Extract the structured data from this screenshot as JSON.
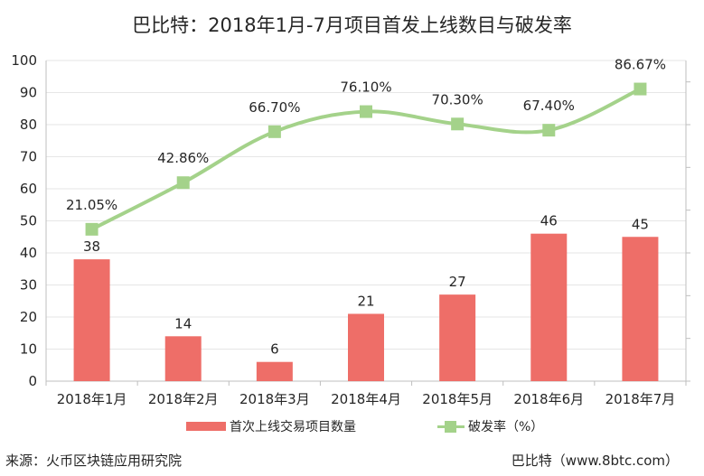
{
  "title": "巴比特：2018年1月-7月项目首发上线数目与破发率",
  "footer": {
    "source": "来源：火币区块链应用研究院",
    "credit": "巴比特（www.8btc.com）"
  },
  "colors": {
    "bar": "#ee6e68",
    "line": "#a4d28a",
    "grid": "#e6e6e6",
    "axis": "#bfbfbf"
  },
  "chart_data": {
    "type": "bar",
    "categories": [
      "2018年1月",
      "2018年2月",
      "2018年3月",
      "2018年4月",
      "2018年5月",
      "2018年6月",
      "2018年7月"
    ],
    "y_ticks": [
      "0",
      "10",
      "20",
      "30",
      "40",
      "50",
      "60",
      "70",
      "80",
      "90",
      "100"
    ],
    "ylim": [
      0,
      100
    ],
    "grid": true,
    "legend_position": "bottom",
    "series": [
      {
        "name": "首次上线交易项目数量",
        "type": "bar",
        "values": [
          38,
          14,
          6,
          21,
          27,
          46,
          45
        ],
        "labels": [
          "38",
          "14",
          "6",
          "21",
          "27",
          "46",
          "45"
        ]
      },
      {
        "name": "破发率（%）",
        "type": "line",
        "smooth": true,
        "values": [
          21.05,
          42.86,
          66.7,
          76.1,
          70.3,
          67.4,
          86.67
        ],
        "labels": [
          "21.05%",
          "42.86%",
          "66.70%",
          "76.10%",
          "70.30%",
          "67.40%",
          "86.67%"
        ],
        "secondary_axis_range": [
          -50,
          100
        ]
      }
    ]
  }
}
